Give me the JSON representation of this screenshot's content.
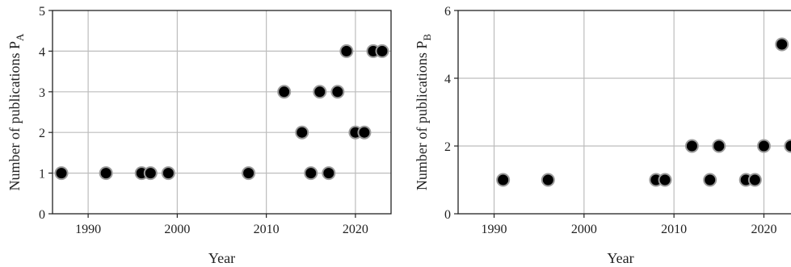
{
  "chart_data": [
    {
      "type": "scatter",
      "xlabel": "Year",
      "ylabel": "Number of publications P",
      "ylabel_sub": "A",
      "xlim": [
        1986,
        2024
      ],
      "ylim": [
        0,
        5
      ],
      "xticks": [
        1990,
        2000,
        2010,
        2020
      ],
      "yticks": [
        0,
        1,
        2,
        3,
        4,
        5
      ],
      "grid": true,
      "marker_color": "#000000",
      "series": [
        {
          "x": [
            1987,
            1992,
            1996,
            1997,
            1999,
            2008,
            2012,
            2014,
            2015,
            2016,
            2017,
            2018,
            2019,
            2020,
            2021,
            2022,
            2023
          ],
          "y": [
            1,
            1,
            1,
            1,
            1,
            1,
            3,
            2,
            1,
            3,
            1,
            3,
            4,
            2,
            2,
            4,
            4
          ]
        }
      ]
    },
    {
      "type": "scatter",
      "xlabel": "Year",
      "ylabel": "Number of publications P",
      "ylabel_sub": "B",
      "xlim": [
        1986,
        2024
      ],
      "ylim": [
        0,
        6
      ],
      "xticks": [
        1990,
        2000,
        2010,
        2020
      ],
      "yticks": [
        0,
        2,
        4,
        6
      ],
      "grid": true,
      "marker_color": "#000000",
      "series": [
        {
          "x": [
            1991,
            1996,
            2008,
            2009,
            2012,
            2014,
            2015,
            2018,
            2019,
            2020,
            2022,
            2023
          ],
          "y": [
            1,
            1,
            1,
            1,
            2,
            1,
            2,
            1,
            1,
            2,
            5,
            2
          ]
        }
      ]
    }
  ]
}
